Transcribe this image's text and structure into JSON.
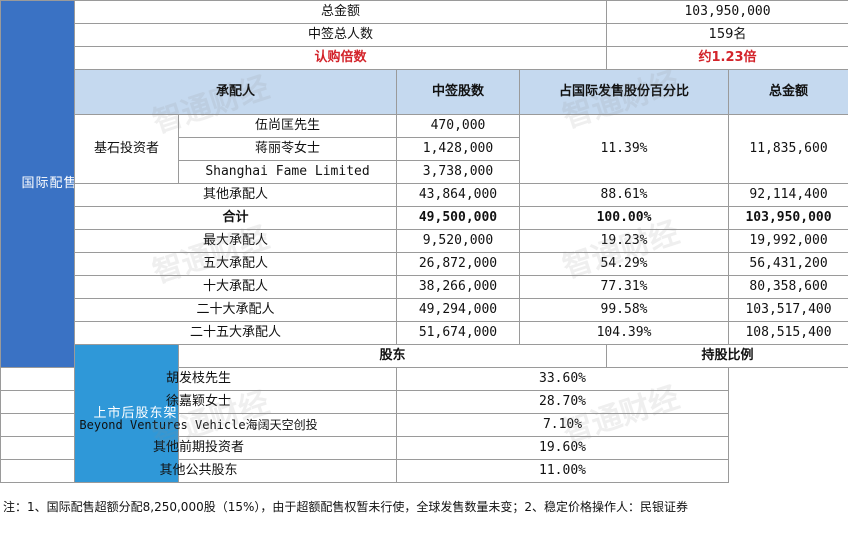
{
  "summary": {
    "total_amount_label": "总金额",
    "total_amount_value": "103,950,000",
    "total_winners_label": "中签总人数",
    "total_winners_value": "159名",
    "subscription_label": "认购倍数",
    "subscription_value": "约1.23倍"
  },
  "section_labels": {
    "international": "国际配售",
    "shareholding": "上市后股东架构"
  },
  "headers": {
    "underwriter": "承配人",
    "shares": "中签股数",
    "pct": "占国际发售股份百分比",
    "amount": "总金额"
  },
  "cornerstone": {
    "label": "基石投资者",
    "investors": [
      {
        "name": "伍尚匡先生",
        "shares": "470,000"
      },
      {
        "name": "蒋丽苓女士",
        "shares": "1,428,000"
      },
      {
        "name": "Shanghai Fame Limited",
        "shares": "3,738,000"
      }
    ],
    "pct": "11.39%",
    "amount": "11,835,600"
  },
  "rows": [
    {
      "name": "其他承配人",
      "shares": "43,864,000",
      "pct": "88.61%",
      "amount": "92,114,400"
    }
  ],
  "total_row": {
    "name": "合计",
    "shares": "49,500,000",
    "pct": "100.00%",
    "amount": "103,950,000"
  },
  "top_rows": [
    {
      "name": "最大承配人",
      "shares": "9,520,000",
      "pct": "19.23%",
      "amount": "19,992,000"
    },
    {
      "name": "五大承配人",
      "shares": "26,872,000",
      "pct": "54.29%",
      "amount": "56,431,200"
    },
    {
      "name": "十大承配人",
      "shares": "38,266,000",
      "pct": "77.31%",
      "amount": "80,358,600"
    },
    {
      "name": "二十大承配人",
      "shares": "49,294,000",
      "pct": "99.58%",
      "amount": "103,517,400"
    },
    {
      "name": "二十五大承配人",
      "shares": "51,674,000",
      "pct": "104.39%",
      "amount": "108,515,400"
    }
  ],
  "shareholders_header": {
    "name": "股东",
    "ratio": "持股比例"
  },
  "shareholders": [
    {
      "name": "胡发枝先生",
      "ratio": "33.60%"
    },
    {
      "name": "徐嘉颖女士",
      "ratio": "28.70%"
    },
    {
      "name": "Beyond Ventures Vehicle海阔天空创投",
      "ratio": "7.10%"
    },
    {
      "name": "其他前期投资者",
      "ratio": "19.60%"
    },
    {
      "name": "其他公共股东",
      "ratio": "11.00%"
    }
  ],
  "note": "注：1、国际配售超额分配8,250,000股（15%），由于超额配售权暂未行使，全球发售数量未变；2、稳定价格操作人：民银证券",
  "watermark": "智通财经"
}
